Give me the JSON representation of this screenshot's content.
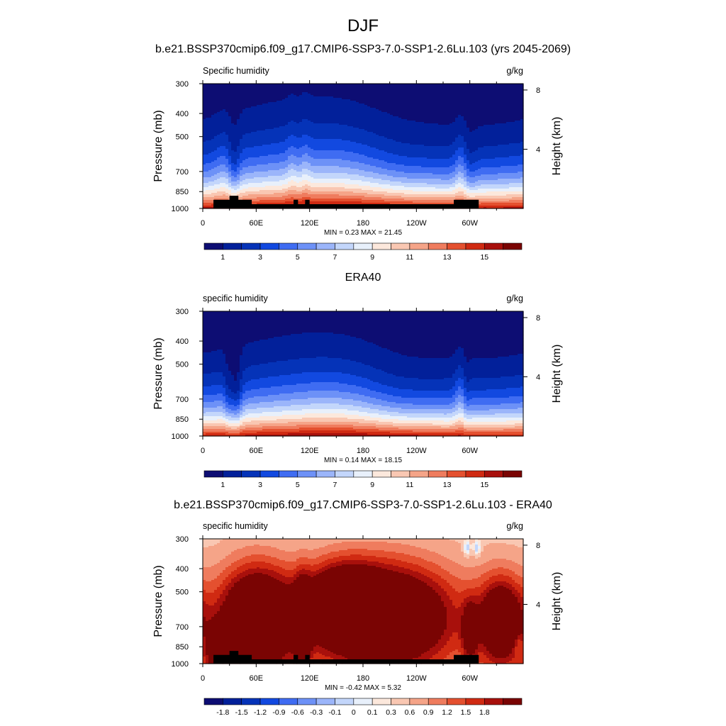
{
  "figure": {
    "title": "DJF"
  },
  "panel_style": {
    "missing_fill": "#000000"
  },
  "chart_data": [
    {
      "type": "heatmap",
      "title": "b.e21.BSSP370cmip6.f09_g17.CMIP6-SSP3-7.0-SSP1-2.6Lu.103 (yrs 2045-2069)",
      "left_label": "Specific humidity",
      "right_label": "g/kg",
      "ylabel": "Pressure (mb)",
      "ylabel_right": "Height (km)",
      "x_ticks": [
        "0",
        "60E",
        "120E",
        "180",
        "120W",
        "60W"
      ],
      "x_tick_lons": [
        0,
        60,
        120,
        180,
        240,
        300
      ],
      "xlim": [
        0,
        360
      ],
      "y_ticks": [
        300,
        400,
        500,
        700,
        850,
        1000
      ],
      "ylim": [
        300,
        1000
      ],
      "y_scale": "log",
      "height_ticks": [
        8,
        4
      ],
      "min_max_text": "MIN =   0.23  MAX =  21.45",
      "colorbar": {
        "colors": [
          "#0d0d73",
          "#02209a",
          "#0533b8",
          "#1249e0",
          "#3f6cf2",
          "#6d91f7",
          "#9bb5fa",
          "#c3d6fb",
          "#e8f0fb",
          "#fce8dc",
          "#f9c7b2",
          "#f5a488",
          "#ef7c5e",
          "#e4502f",
          "#d02a12",
          "#a8100c",
          "#7a0403"
        ],
        "tick_labels": [
          "1",
          "3",
          "5",
          "7",
          "9",
          "11",
          "13",
          "15"
        ],
        "tick_positions": [
          1,
          3,
          5,
          7,
          9,
          11,
          13,
          15
        ]
      },
      "surface_mb": [
        [
          0,
          1000
        ],
        [
          10,
          1000
        ],
        [
          12,
          920
        ],
        [
          28,
          920
        ],
        [
          30,
          885
        ],
        [
          38,
          885
        ],
        [
          40,
          920
        ],
        [
          55,
          960
        ],
        [
          100,
          960
        ],
        [
          102,
          920
        ],
        [
          105,
          920
        ],
        [
          107,
          960
        ],
        [
          113,
          960
        ],
        [
          115,
          920
        ],
        [
          118,
          920
        ],
        [
          120,
          960
        ],
        [
          280,
          960
        ],
        [
          282,
          920
        ],
        [
          308,
          920
        ],
        [
          310,
          1000
        ],
        [
          360,
          1000
        ]
      ],
      "profile": {
        "kind": "climatology",
        "q_surface": 16,
        "q_surface_amp": 2.2,
        "hs": 2.35,
        "hs_amp": 0.5,
        "fold_scale": 0.55,
        "features": [
          {
            "lon": 35,
            "width": 5,
            "amp": -1.1
          },
          {
            "lon": 25,
            "width": 8,
            "amp": 0.5
          },
          {
            "lon": 100,
            "width": 4,
            "amp": 0.5
          },
          {
            "lon": 115,
            "width": 4,
            "amp": 0.5
          },
          {
            "lon": 150,
            "width": 35,
            "amp": 0.25
          },
          {
            "lon": 220,
            "width": 30,
            "amp": -0.3
          },
          {
            "lon": 290,
            "width": 5,
            "amp": 0.9
          },
          {
            "lon": 300,
            "width": 6,
            "amp": -0.4
          }
        ]
      }
    },
    {
      "type": "heatmap",
      "title": "ERA40",
      "left_label": "specific humidity",
      "right_label": "g/kg",
      "ylabel": "Pressure (mb)",
      "ylabel_right": "Height (km)",
      "x_ticks": [
        "0",
        "60E",
        "120E",
        "180",
        "120W",
        "60W"
      ],
      "x_tick_lons": [
        0,
        60,
        120,
        180,
        240,
        300
      ],
      "xlim": [
        0,
        360
      ],
      "y_ticks": [
        300,
        400,
        500,
        700,
        850,
        1000
      ],
      "ylim": [
        300,
        1000
      ],
      "y_scale": "log",
      "height_ticks": [
        8,
        4
      ],
      "min_max_text": "MIN =   0.14  MAX =  18.15",
      "colorbar": {
        "colors": [
          "#0d0d73",
          "#02209a",
          "#0533b8",
          "#1249e0",
          "#3f6cf2",
          "#6d91f7",
          "#9bb5fa",
          "#c3d6fb",
          "#e8f0fb",
          "#fce8dc",
          "#f9c7b2",
          "#f5a488",
          "#ef7c5e",
          "#e4502f",
          "#d02a12",
          "#a8100c",
          "#7a0403"
        ],
        "tick_labels": [
          "1",
          "3",
          "5",
          "7",
          "9",
          "11",
          "13",
          "15"
        ],
        "tick_positions": [
          1,
          3,
          5,
          7,
          9,
          11,
          13,
          15
        ]
      },
      "surface_mb": [],
      "profile": {
        "kind": "climatology",
        "q_surface": 15.5,
        "q_surface_amp": 2.0,
        "hs": 2.2,
        "hs_amp": 0.45,
        "fold_scale": 0.55,
        "features": [
          {
            "lon": 37,
            "width": 5,
            "amp": -1.3
          },
          {
            "lon": 28,
            "width": 3,
            "amp": -0.6
          },
          {
            "lon": 150,
            "width": 35,
            "amp": 0.25
          },
          {
            "lon": 220,
            "width": 30,
            "amp": -0.35
          },
          {
            "lon": 290,
            "width": 5,
            "amp": 0.9
          },
          {
            "lon": 296,
            "width": 3,
            "amp": -0.5
          }
        ]
      }
    },
    {
      "type": "heatmap",
      "title": "b.e21.BSSP370cmip6.f09_g17.CMIP6-SSP3-7.0-SSP1-2.6Lu.103 - ERA40",
      "left_label": "specific humidity",
      "right_label": "g/kg",
      "ylabel": "Pressure (mb)",
      "ylabel_right": "Height (km)",
      "x_ticks": [
        "0",
        "60E",
        "120E",
        "180",
        "120W",
        "60W"
      ],
      "x_tick_lons": [
        0,
        60,
        120,
        180,
        240,
        300
      ],
      "xlim": [
        0,
        360
      ],
      "y_ticks": [
        300,
        400,
        500,
        700,
        850,
        1000
      ],
      "ylim": [
        300,
        1000
      ],
      "y_scale": "log",
      "height_ticks": [
        8,
        4
      ],
      "min_max_text": "MIN =  -0.42  MAX =   5.32",
      "colorbar": {
        "colors": [
          "#0d0d73",
          "#02209a",
          "#0533b8",
          "#1249e0",
          "#3f6cf2",
          "#6d91f7",
          "#9bb5fa",
          "#c3d6fb",
          "#e8f0fb",
          "#fce8dc",
          "#f9c7b2",
          "#f5a488",
          "#ef7c5e",
          "#e4502f",
          "#d02a12",
          "#a8100c",
          "#7a0403"
        ],
        "tick_labels": [
          "-1.8",
          "-1.5",
          "-1.2",
          "-0.9",
          "-0.6",
          "-0.3",
          "-0.1",
          "0",
          "0.1",
          "0.3",
          "0.6",
          "0.9",
          "1.2",
          "1.5",
          "1.8"
        ],
        "tick_positions": [
          1,
          2,
          3,
          4,
          5,
          6,
          7,
          8,
          9,
          10,
          11,
          12,
          13,
          14,
          15
        ]
      },
      "surface_mb": [
        [
          0,
          1000
        ],
        [
          10,
          1000
        ],
        [
          12,
          920
        ],
        [
          28,
          920
        ],
        [
          30,
          885
        ],
        [
          38,
          885
        ],
        [
          40,
          920
        ],
        [
          55,
          960
        ],
        [
          100,
          960
        ],
        [
          102,
          920
        ],
        [
          105,
          920
        ],
        [
          107,
          960
        ],
        [
          113,
          960
        ],
        [
          115,
          920
        ],
        [
          118,
          920
        ],
        [
          120,
          960
        ],
        [
          280,
          960
        ],
        [
          282,
          920
        ],
        [
          308,
          920
        ],
        [
          310,
          1000
        ],
        [
          360,
          1000
        ]
      ],
      "profile": {
        "kind": "difference",
        "levels": [
          -1.8,
          -1.5,
          -1.2,
          -0.9,
          -0.6,
          -0.3,
          -0.1,
          0,
          0.1,
          0.3,
          0.6,
          0.9,
          1.2,
          1.5,
          1.8
        ],
        "blobs": [
          {
            "lon": 60,
            "logp": 6.48,
            "slon": 30,
            "slp": 0.35,
            "amp": 3.4
          },
          {
            "lon": 205,
            "logp": 6.45,
            "slon": 55,
            "slp": 0.35,
            "amp": 3.3
          },
          {
            "lon": 155,
            "logp": 6.3,
            "slon": 28,
            "slp": 0.25,
            "amp": 2.0
          },
          {
            "lon": 335,
            "logp": 6.5,
            "slon": 18,
            "slp": 0.3,
            "amp": 2.6
          },
          {
            "lon": 15,
            "logp": 6.8,
            "slon": 8,
            "slp": 0.18,
            "amp": 1.5
          },
          {
            "lon": 112,
            "logp": 6.55,
            "slon": 6,
            "slp": 0.3,
            "amp": 2.0
          },
          {
            "lon": 300,
            "logp": 6.6,
            "slon": 6,
            "slp": 0.2,
            "amp": 1.5
          }
        ],
        "cold_spots": [
          {
            "lon": 22,
            "logp": 6.8,
            "slon": 3,
            "slp": 0.07,
            "amp": -0.5
          },
          {
            "lon": 355,
            "logp": 6.72,
            "slon": 4,
            "slp": 0.07,
            "amp": -0.5
          },
          {
            "lon": 297,
            "logp": 5.8,
            "slon": 3,
            "slp": 0.06,
            "amp": -0.5
          },
          {
            "lon": 308,
            "logp": 5.8,
            "slon": 3,
            "slp": 0.06,
            "amp": -0.5
          }
        ]
      }
    }
  ]
}
